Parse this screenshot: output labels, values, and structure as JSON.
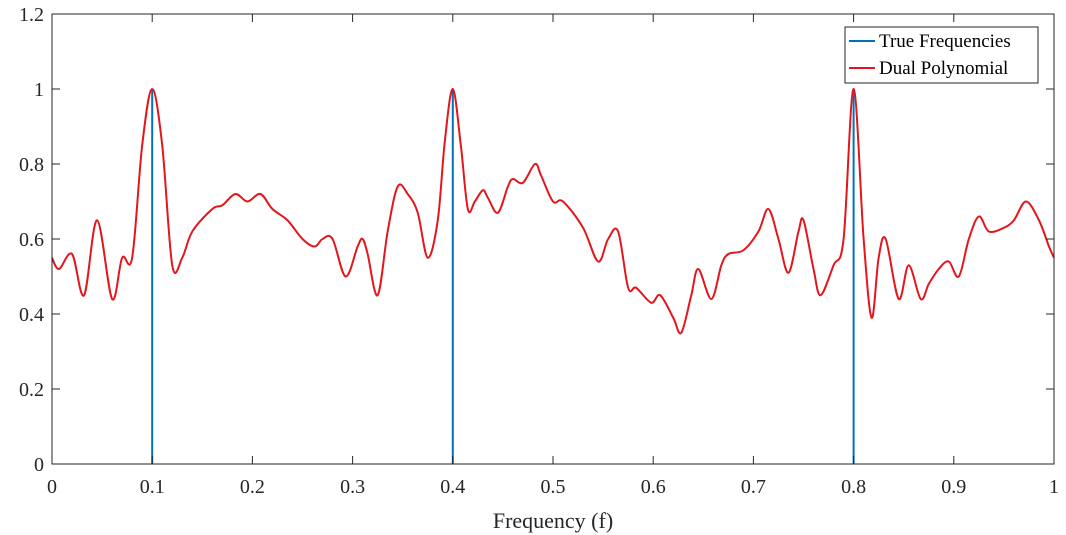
{
  "chart_data": {
    "type": "line",
    "title": "",
    "xlabel": "Frequency (f)",
    "ylabel": "",
    "xlim": [
      0,
      1
    ],
    "ylim": [
      0,
      1.2
    ],
    "xticks": [
      0,
      0.1,
      0.2,
      0.3,
      0.4,
      0.5,
      0.6,
      0.7,
      0.8,
      0.9,
      1
    ],
    "xtick_labels": [
      "0",
      "0.1",
      "0.2",
      "0.3",
      "0.4",
      "0.5",
      "0.6",
      "0.7",
      "0.8",
      "0.9",
      "1"
    ],
    "yticks": [
      0,
      0.2,
      0.4,
      0.6,
      0.8,
      1,
      1.2
    ],
    "ytick_labels": [
      "0",
      "0.2",
      "0.4",
      "0.6",
      "0.8",
      "1",
      "1.2"
    ],
    "grid": false,
    "legend_position": "top-right",
    "series": [
      {
        "name": "True Frequencies",
        "kind": "stem",
        "color": "#0072BD",
        "x": [
          0.1,
          0.4,
          0.8
        ],
        "y": [
          1,
          1,
          1
        ]
      },
      {
        "name": "Dual Polynomial",
        "kind": "line",
        "color": "#E3161B",
        "x": [
          0,
          0.007,
          0.02,
          0.032,
          0.045,
          0.06,
          0.07,
          0.08,
          0.09,
          0.1,
          0.11,
          0.12,
          0.13,
          0.14,
          0.16,
          0.17,
          0.183,
          0.195,
          0.208,
          0.22,
          0.235,
          0.25,
          0.262,
          0.27,
          0.28,
          0.293,
          0.305,
          0.31,
          0.315,
          0.325,
          0.335,
          0.345,
          0.355,
          0.365,
          0.375,
          0.385,
          0.392,
          0.4,
          0.408,
          0.415,
          0.422,
          0.43,
          0.435,
          0.445,
          0.455,
          0.46,
          0.47,
          0.482,
          0.488,
          0.5,
          0.51,
          0.53,
          0.545,
          0.555,
          0.565,
          0.575,
          0.583,
          0.598,
          0.607,
          0.62,
          0.628,
          0.638,
          0.645,
          0.658,
          0.668,
          0.675,
          0.69,
          0.705,
          0.715,
          0.725,
          0.735,
          0.745,
          0.75,
          0.76,
          0.767,
          0.78,
          0.79,
          0.8,
          0.81,
          0.818,
          0.825,
          0.832,
          0.845,
          0.855,
          0.867,
          0.875,
          0.885,
          0.895,
          0.905,
          0.915,
          0.925,
          0.935,
          0.95,
          0.96,
          0.972,
          0.985,
          0.995,
          1
        ],
        "y": [
          0.55,
          0.52,
          0.56,
          0.45,
          0.65,
          0.44,
          0.55,
          0.55,
          0.85,
          1.0,
          0.85,
          0.53,
          0.55,
          0.62,
          0.68,
          0.69,
          0.72,
          0.7,
          0.72,
          0.68,
          0.65,
          0.6,
          0.58,
          0.6,
          0.6,
          0.5,
          0.58,
          0.6,
          0.56,
          0.45,
          0.62,
          0.74,
          0.72,
          0.67,
          0.55,
          0.65,
          0.86,
          1.0,
          0.85,
          0.68,
          0.7,
          0.73,
          0.71,
          0.67,
          0.74,
          0.76,
          0.75,
          0.8,
          0.77,
          0.7,
          0.7,
          0.63,
          0.54,
          0.6,
          0.62,
          0.47,
          0.47,
          0.43,
          0.45,
          0.39,
          0.35,
          0.45,
          0.52,
          0.44,
          0.53,
          0.56,
          0.57,
          0.62,
          0.68,
          0.6,
          0.51,
          0.62,
          0.65,
          0.52,
          0.45,
          0.53,
          0.6,
          1.0,
          0.6,
          0.39,
          0.55,
          0.6,
          0.44,
          0.53,
          0.44,
          0.48,
          0.52,
          0.54,
          0.5,
          0.6,
          0.66,
          0.62,
          0.63,
          0.65,
          0.7,
          0.65,
          0.58,
          0.55
        ]
      }
    ]
  }
}
